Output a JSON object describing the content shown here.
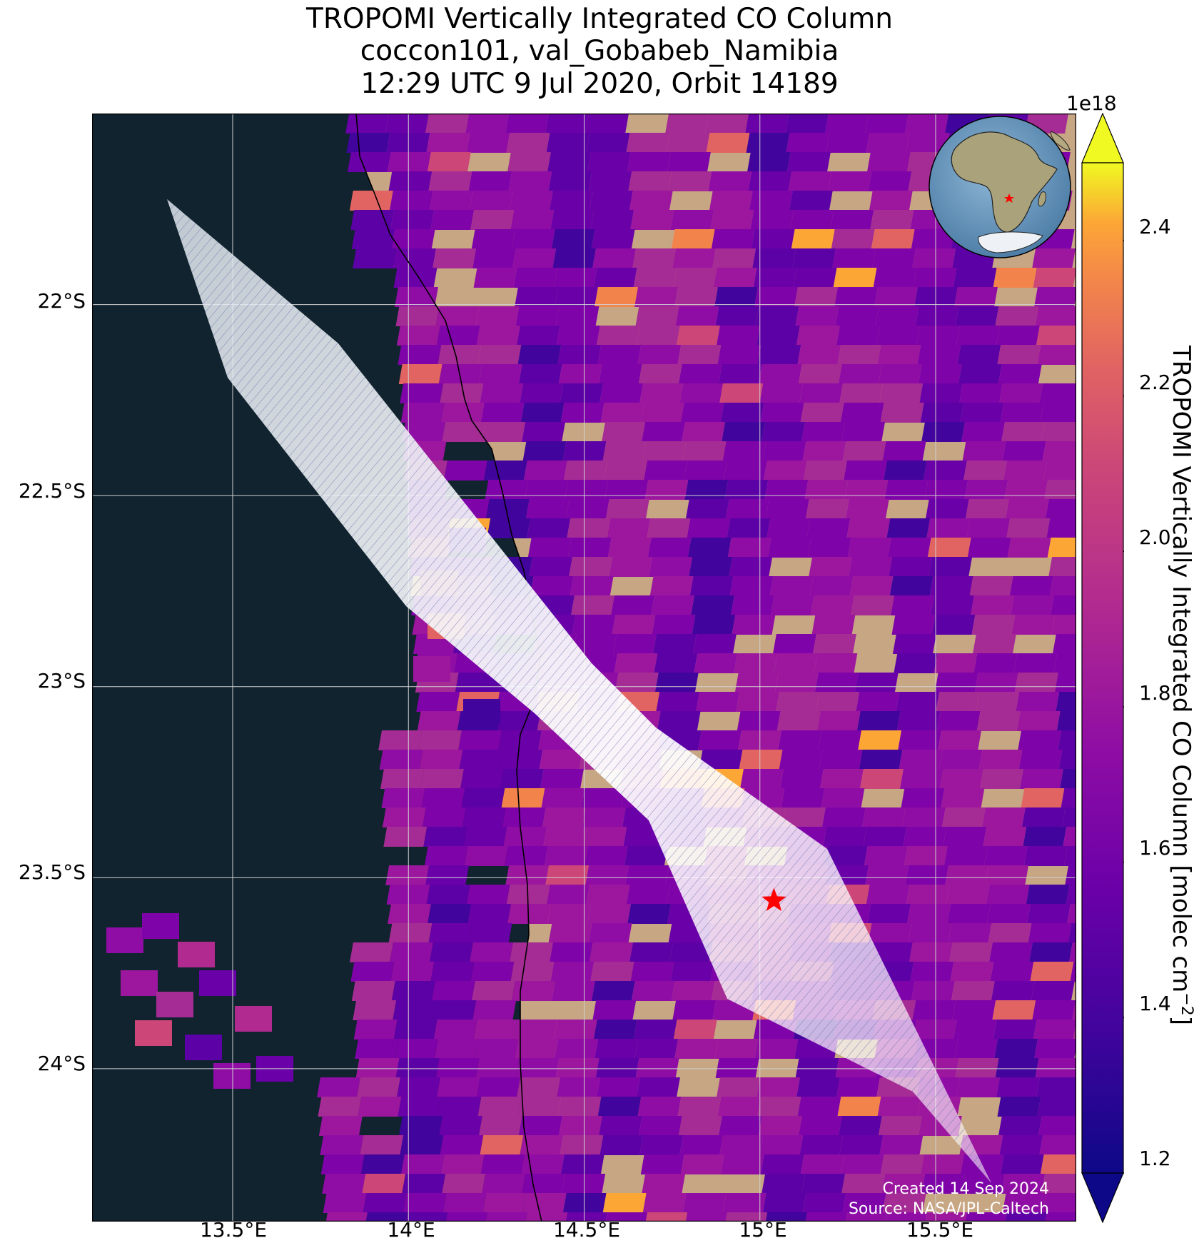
{
  "title": {
    "line1": "TROPOMI Vertically Integrated CO Column",
    "line2": "coccon101, val_Gobabeb_Namibia",
    "line3": "12:29 UTC 9 Jul 2020, Orbit 14189"
  },
  "axes": {
    "lat_ticks": [
      "22°S",
      "22.5°S",
      "23°S",
      "23.5°S",
      "24°S"
    ],
    "lon_ticks": [
      "13.5°E",
      "14°E",
      "14.5°E",
      "15°E",
      "15.5°E"
    ],
    "lon_range": [
      13.1,
      15.9
    ],
    "lat_range": [
      -21.5,
      -24.4
    ]
  },
  "colorbar": {
    "offset_label": "1e18",
    "ticks": [
      "1.2",
      "1.4",
      "1.6",
      "1.8",
      "2.0",
      "2.2",
      "2.4"
    ],
    "range": [
      1.2,
      2.5
    ],
    "label": "TROPOMI Vertically Integrated CO Column [molec cm",
    "label_exponent": "−2",
    "label_close": "]",
    "colormap": "plasma"
  },
  "site_marker": {
    "name": "star",
    "lon": 15.04,
    "lat": -23.56,
    "color": "#ff0000"
  },
  "colors": {
    "ocean": "#10232f",
    "land": "#c7a684",
    "gridline": "#d0d0d0"
  },
  "credits": {
    "created": "Created 14 Sep 2024",
    "source": "Source: NASA/JPL-Caltech"
  }
}
